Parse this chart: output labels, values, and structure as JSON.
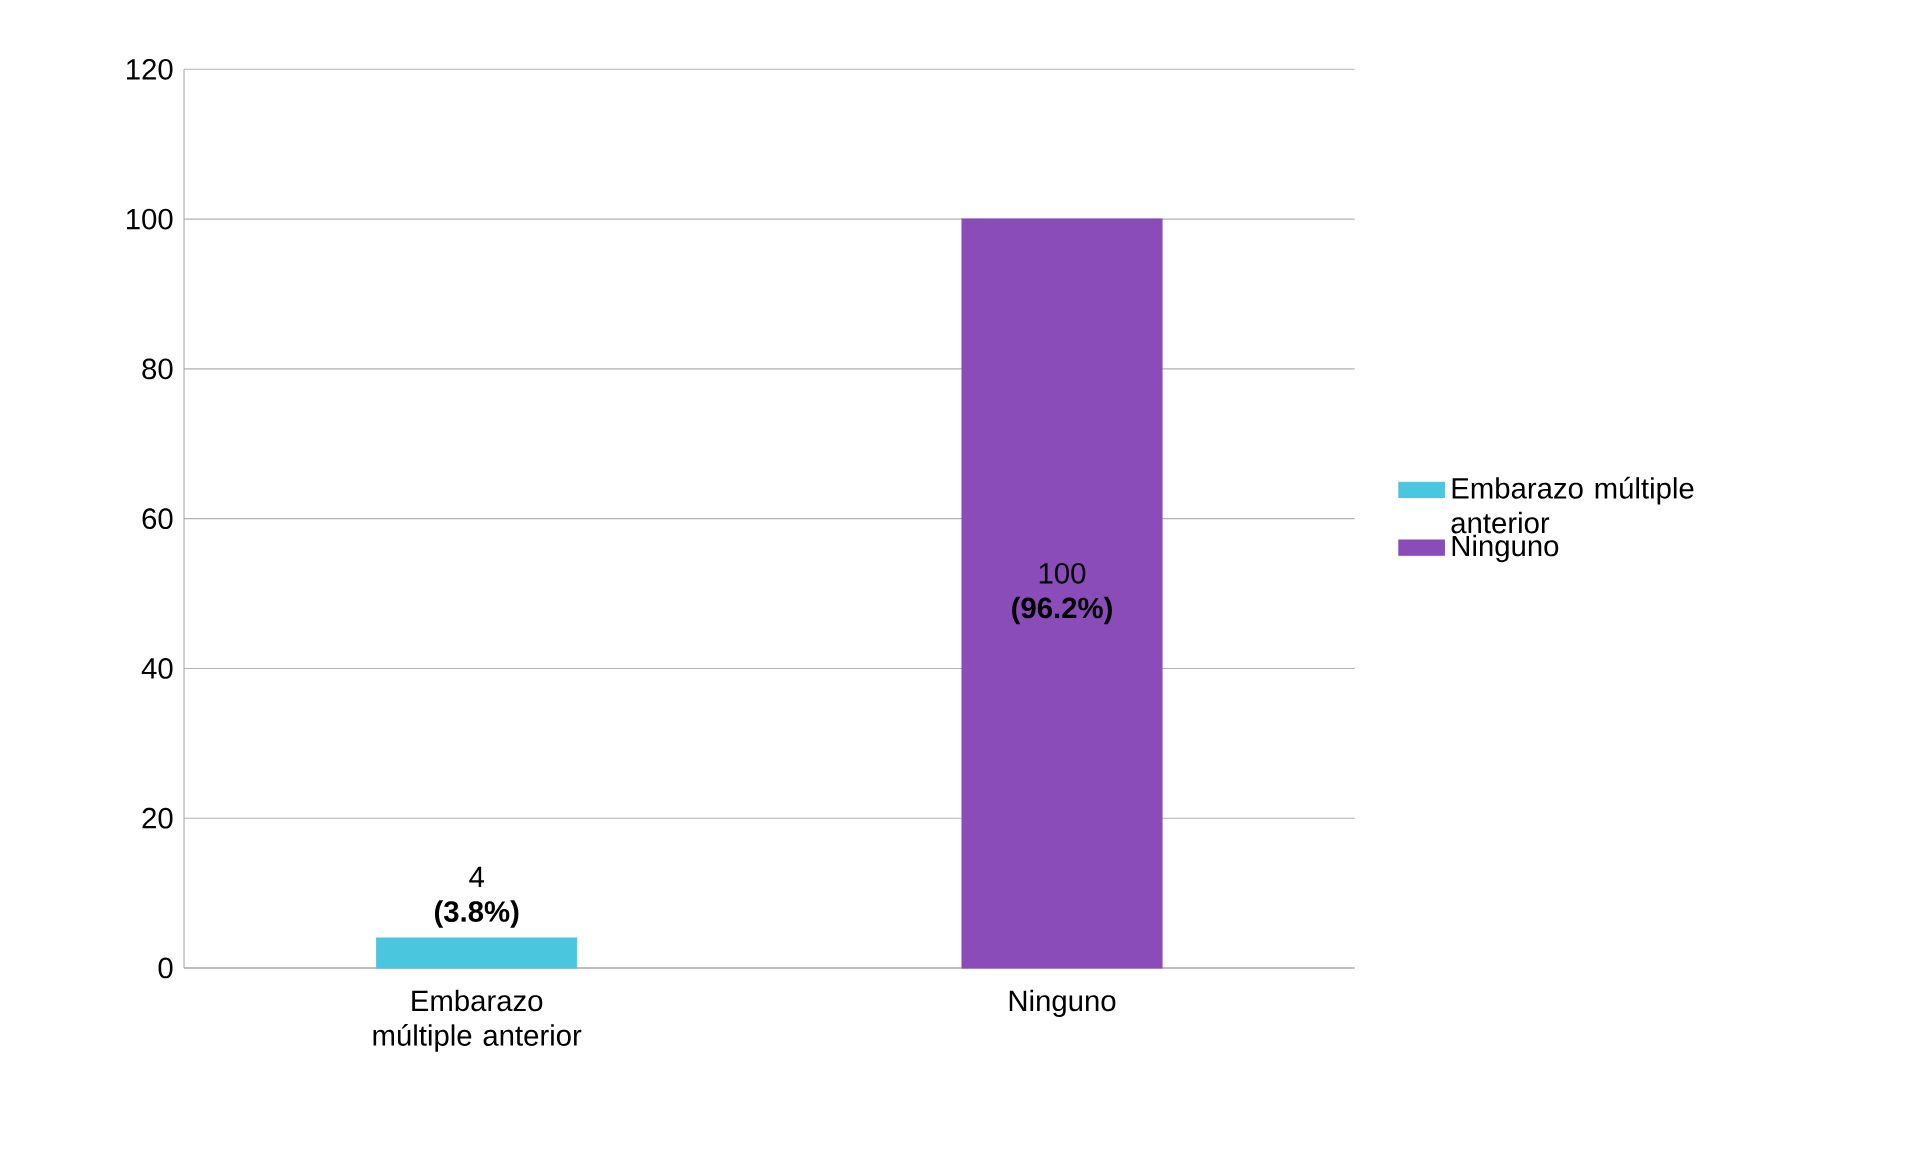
{
  "chart_data": {
    "type": "bar",
    "stacked": true,
    "categories": [
      "Embarazo múltiple anterior",
      "Ninguno"
    ],
    "series": [
      {
        "name": "Embarazo múltiple anterior",
        "color": "#4bc6df",
        "values": [
          4,
          null
        ],
        "value_labels": [
          "4 **(3.8%)**",
          null
        ]
      },
      {
        "name": "Ninguno",
        "color": "#8a4cb8",
        "values": [
          null,
          100
        ],
        "value_labels": [
          null,
          "100 **(96.2%)**"
        ]
      }
    ],
    "ylim": [
      0,
      120
    ],
    "yticks": [
      0,
      20,
      40,
      60,
      80,
      100,
      120
    ],
    "grid": "y",
    "legend": "right"
  }
}
